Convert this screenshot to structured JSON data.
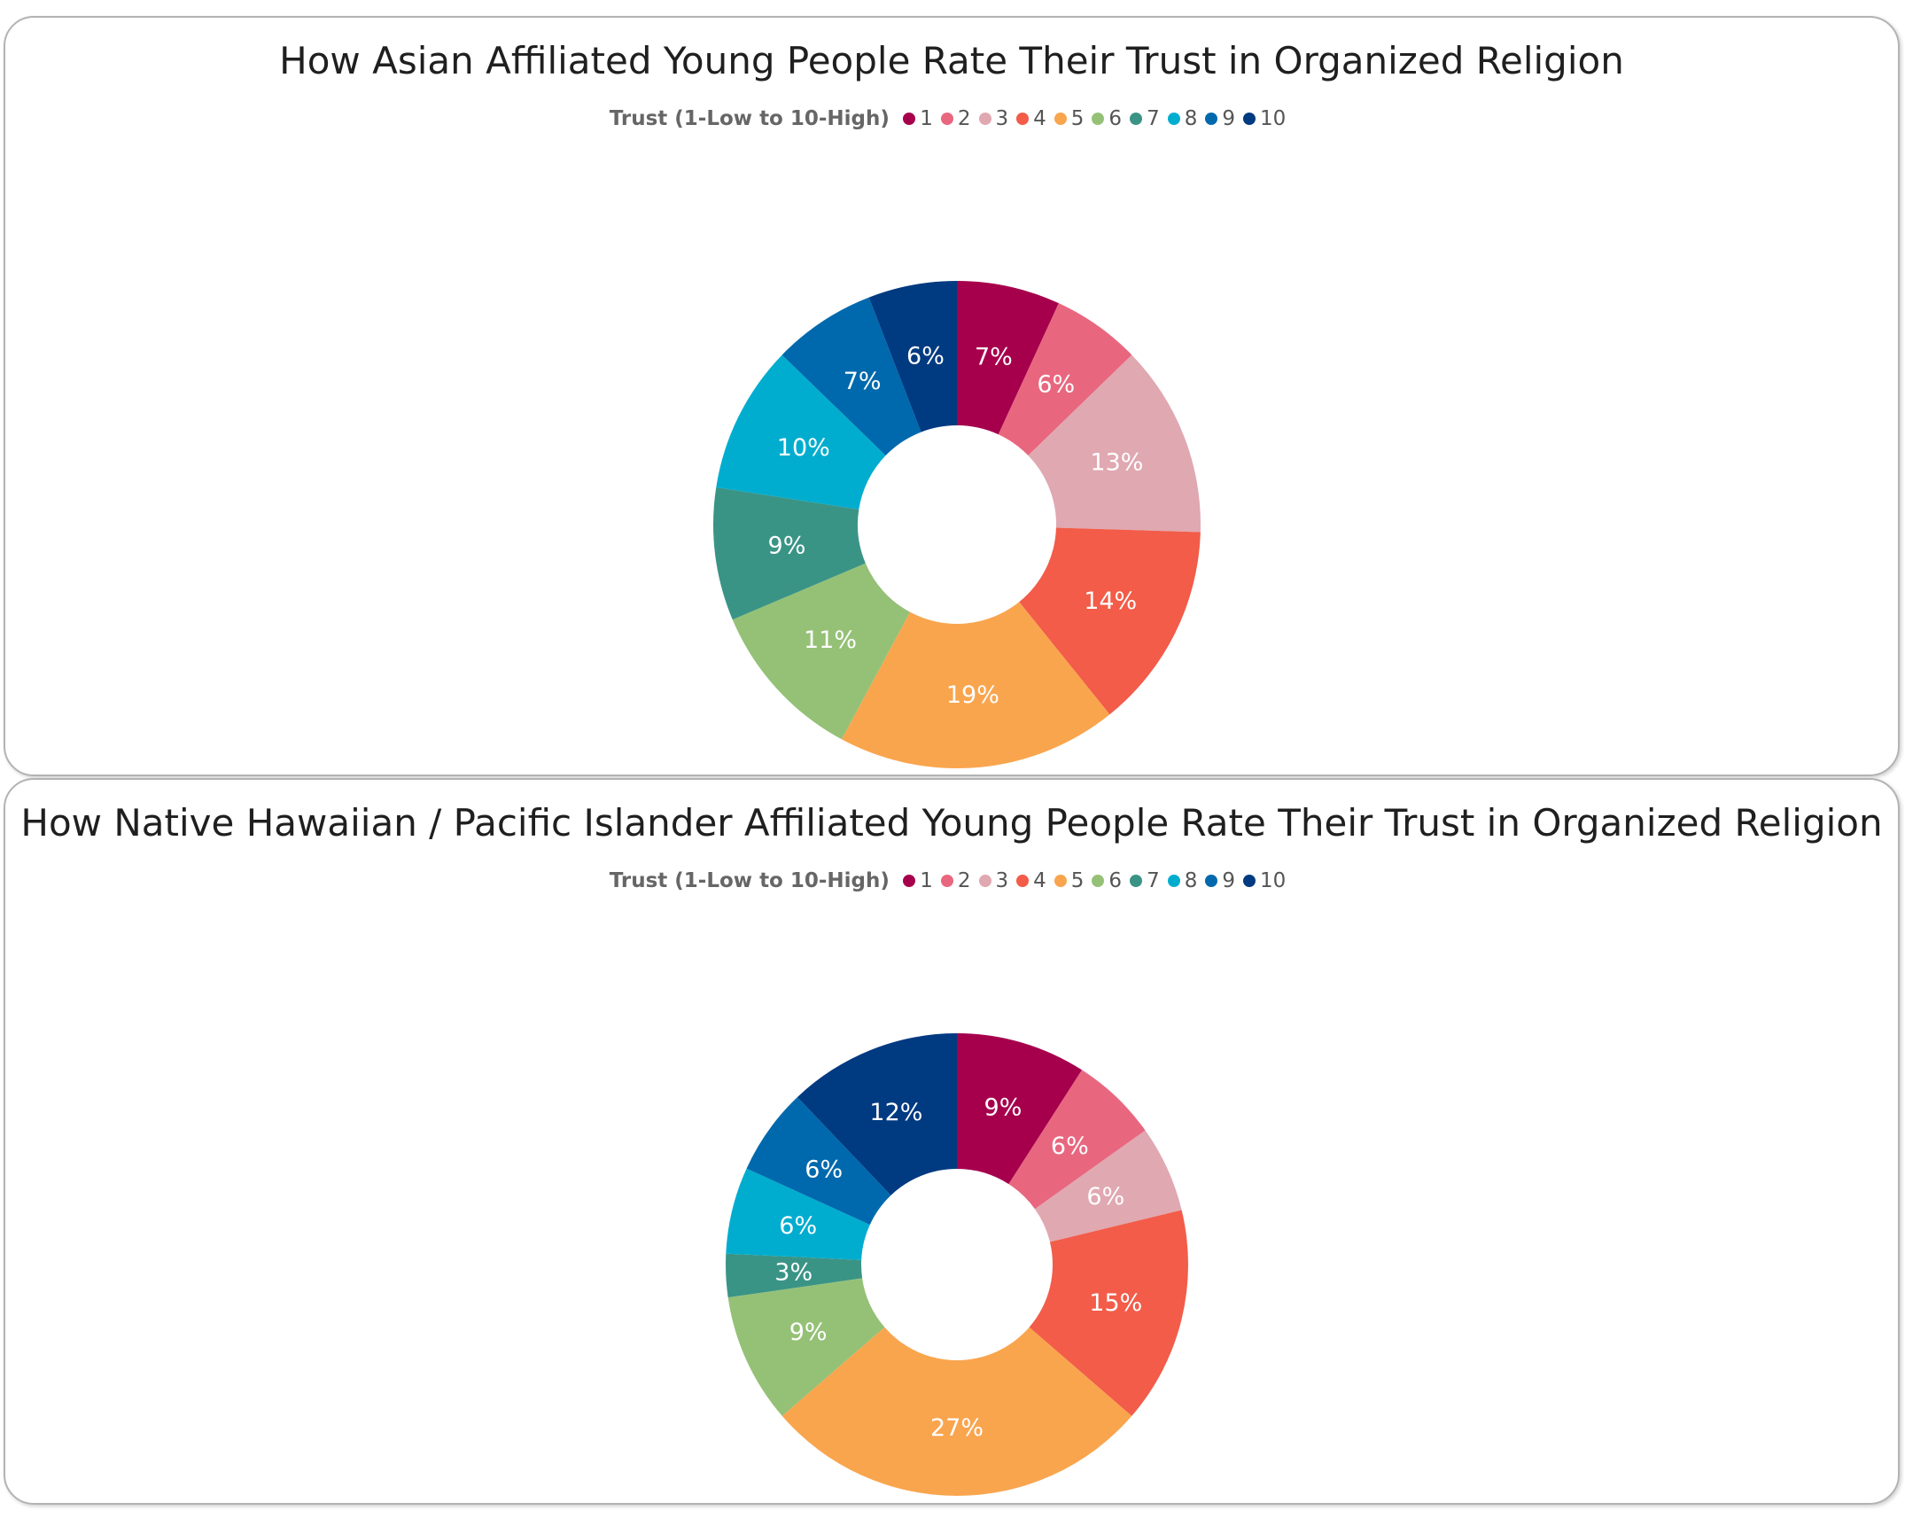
{
  "chart_data": [
    {
      "type": "pie",
      "variant": "donut",
      "title": "How Asian Affiliated Young People Rate Their Trust in Organized Religion",
      "legend_title": "Trust (1-Low to 10-High)",
      "legend_placement": "top-center",
      "categories": [
        "1",
        "2",
        "3",
        "4",
        "5",
        "6",
        "7",
        "8",
        "9",
        "10"
      ],
      "values": [
        7,
        6,
        13,
        14,
        19,
        11,
        9,
        10,
        7,
        6
      ],
      "value_labels": [
        "7%",
        "6%",
        "13%",
        "14%",
        "19%",
        "11%",
        "9%",
        "10%",
        "7%",
        "6%"
      ]
    },
    {
      "type": "pie",
      "variant": "donut",
      "title": "How Native Hawaiian / Pacific Islander Affiliated Young People Rate Their Trust in Organized Religion",
      "legend_title": "Trust (1-Low to 10-High)",
      "legend_placement": "top-center",
      "categories": [
        "1",
        "2",
        "3",
        "4",
        "5",
        "6",
        "7",
        "8",
        "9",
        "10"
      ],
      "values": [
        9,
        6,
        6,
        15,
        27,
        9,
        3,
        6,
        6,
        12
      ],
      "value_labels": [
        "9%",
        "6%",
        "6%",
        "15%",
        "27%",
        "9%",
        "3%",
        "6%",
        "6%",
        "12%"
      ]
    }
  ],
  "colors": [
    "#a6004d",
    "#e8677f",
    "#e0a8b1",
    "#f25c49",
    "#f9a54e",
    "#95c177",
    "#3a9486",
    "#00adcf",
    "#0069ad",
    "#003a80"
  ]
}
